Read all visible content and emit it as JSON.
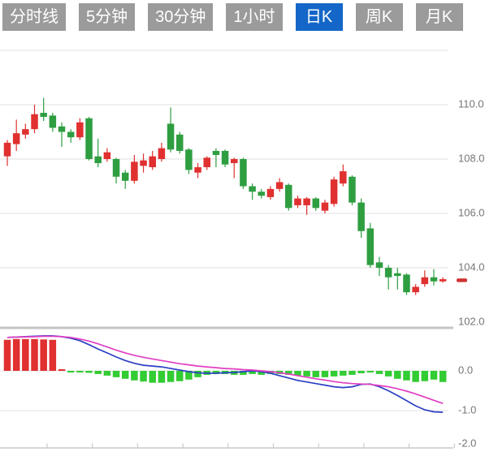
{
  "tabs": {
    "items": [
      {
        "name": "tab-timeline",
        "label": "分时线",
        "selected": false
      },
      {
        "name": "tab-5min",
        "label": "5分钟",
        "selected": false
      },
      {
        "name": "tab-30min",
        "label": "30分钟",
        "selected": false
      },
      {
        "name": "tab-1hour",
        "label": "1小时",
        "selected": false
      },
      {
        "name": "tab-daily-k",
        "label": "日K",
        "selected": true
      },
      {
        "name": "tab-weekly-k",
        "label": "周K",
        "selected": false
      },
      {
        "name": "tab-monthly-k",
        "label": "月K",
        "selected": false
      }
    ],
    "selected_bg": "#1467C8",
    "unselected_bg": "#9B9B9B",
    "text_color": "#FFFFFF"
  },
  "colors": {
    "candle_up": "#E03030",
    "candle_down": "#2E9E41",
    "macd_positive": "#E03030",
    "macd_negative": "#33CC33",
    "dif_line": "#2B3FC4",
    "dea_line": "#E13EC3",
    "gridline": "#E6E6E6",
    "separator": "#C4C4C4",
    "axis_line": "#C9C9C9",
    "axis_text": "#757575",
    "last_price_marker": "#CF3333"
  },
  "chart_data": {
    "type": "candlestick",
    "title": "",
    "price_panel": {
      "ylim": [
        102.0,
        112.0
      ],
      "grid": true,
      "gridline_values": [
        112.0,
        110.0,
        108.0,
        106.0,
        104.0
      ],
      "axis_labels": [
        {
          "text": "110.0",
          "value": 110.0
        },
        {
          "text": "108.0",
          "value": 108.0
        },
        {
          "text": "106.0",
          "value": 106.0
        },
        {
          "text": "104.0",
          "value": 104.0
        },
        {
          "text": "102.0",
          "value": 102.0
        }
      ],
      "last_price": 103.55,
      "candles_ohlc_order": [
        "open",
        "high",
        "low",
        "close"
      ],
      "candles": [
        [
          108.1,
          108.7,
          107.75,
          108.6
        ],
        [
          108.55,
          109.45,
          108.3,
          108.95
        ],
        [
          108.9,
          109.3,
          108.75,
          109.1
        ],
        [
          109.1,
          110.0,
          108.95,
          109.65
        ],
        [
          109.7,
          110.25,
          109.4,
          109.55
        ],
        [
          109.6,
          109.7,
          109.0,
          109.15
        ],
        [
          109.2,
          109.35,
          108.45,
          109.0
        ],
        [
          109.0,
          109.1,
          108.6,
          108.8
        ],
        [
          108.8,
          109.5,
          108.7,
          109.35
        ],
        [
          109.5,
          109.55,
          107.95,
          108.0
        ],
        [
          108.1,
          108.75,
          107.7,
          107.85
        ],
        [
          108.0,
          108.4,
          107.9,
          108.25
        ],
        [
          108.0,
          108.05,
          107.1,
          107.35
        ],
        [
          107.5,
          107.6,
          106.9,
          107.2
        ],
        [
          107.2,
          108.15,
          107.1,
          107.9
        ],
        [
          107.75,
          108.2,
          107.5,
          107.95
        ],
        [
          107.7,
          108.3,
          107.6,
          108.1
        ],
        [
          108.0,
          108.6,
          107.9,
          108.4
        ],
        [
          109.3,
          109.9,
          108.25,
          108.35
        ],
        [
          108.9,
          109.0,
          108.2,
          108.3
        ],
        [
          108.35,
          108.4,
          107.45,
          107.6
        ],
        [
          107.5,
          107.85,
          107.3,
          107.7
        ],
        [
          107.7,
          108.1,
          107.6,
          108.05
        ],
        [
          108.3,
          108.4,
          107.7,
          108.15
        ],
        [
          108.3,
          108.35,
          107.7,
          107.8
        ],
        [
          107.85,
          108.05,
          107.3,
          108.0
        ],
        [
          108.0,
          108.05,
          106.9,
          107.0
        ],
        [
          107.0,
          107.1,
          106.5,
          106.8
        ],
        [
          106.8,
          106.9,
          106.55,
          106.65
        ],
        [
          106.6,
          107.0,
          106.5,
          106.9
        ],
        [
          106.9,
          107.3,
          106.8,
          107.15
        ],
        [
          107.05,
          107.1,
          106.1,
          106.2
        ],
        [
          106.3,
          106.65,
          106.2,
          106.55
        ],
        [
          106.3,
          106.6,
          105.95,
          106.55
        ],
        [
          106.55,
          106.6,
          106.1,
          106.2
        ],
        [
          106.1,
          106.5,
          106.0,
          106.4
        ],
        [
          106.35,
          107.35,
          106.25,
          107.25
        ],
        [
          107.1,
          107.8,
          107.0,
          107.55
        ],
        [
          107.35,
          107.4,
          106.3,
          106.4
        ],
        [
          106.4,
          106.55,
          105.1,
          105.35
        ],
        [
          105.45,
          105.65,
          104.0,
          104.1
        ],
        [
          104.2,
          104.4,
          103.7,
          104.0
        ],
        [
          104.0,
          104.1,
          103.2,
          103.65
        ],
        [
          103.8,
          104.0,
          103.2,
          103.7
        ],
        [
          103.75,
          103.8,
          103.0,
          103.1
        ],
        [
          103.1,
          103.4,
          103.0,
          103.3
        ],
        [
          103.4,
          103.9,
          103.3,
          103.65
        ],
        [
          103.65,
          103.95,
          103.35,
          103.5
        ],
        [
          103.5,
          103.65,
          103.45,
          103.58
        ]
      ]
    },
    "indicator_panel": {
      "type": "macd",
      "ylim": [
        -2.0,
        1.0
      ],
      "grid": true,
      "gridline_values": [
        0.0,
        -1.0
      ],
      "axis_labels": [
        {
          "text": "0.0",
          "value": 0.0
        },
        {
          "text": "-1.0",
          "value": -1.0
        },
        {
          "text": "-2.0",
          "value": -2.0
        }
      ],
      "histogram": [
        0.78,
        0.8,
        0.8,
        0.8,
        0.79,
        0.78,
        0.02,
        -0.02,
        -0.03,
        -0.05,
        -0.08,
        -0.12,
        -0.16,
        -0.2,
        -0.24,
        -0.27,
        -0.3,
        -0.3,
        -0.28,
        -0.26,
        -0.22,
        -0.16,
        -0.1,
        -0.08,
        -0.08,
        -0.1,
        -0.1,
        -0.08,
        -0.1,
        -0.08,
        -0.08,
        -0.1,
        -0.12,
        -0.14,
        -0.16,
        -0.16,
        -0.14,
        -0.12,
        -0.1,
        -0.06,
        -0.03,
        -0.08,
        -0.14,
        -0.2,
        -0.24,
        -0.28,
        -0.26,
        -0.22,
        -0.28
      ],
      "dif": [
        0.84,
        0.85,
        0.86,
        0.87,
        0.88,
        0.88,
        0.86,
        0.82,
        0.76,
        0.66,
        0.55,
        0.45,
        0.35,
        0.26,
        0.19,
        0.14,
        0.12,
        0.1,
        0.06,
        0.02,
        -0.02,
        -0.05,
        -0.06,
        -0.06,
        -0.05,
        -0.04,
        -0.02,
        0.0,
        -0.02,
        -0.06,
        -0.12,
        -0.18,
        -0.24,
        -0.28,
        -0.32,
        -0.36,
        -0.4,
        -0.42,
        -0.4,
        -0.34,
        -0.33,
        -0.4,
        -0.5,
        -0.62,
        -0.75,
        -0.88,
        -0.98,
        -1.03,
        -1.04
      ],
      "dea": [
        0.84,
        0.85,
        0.855,
        0.86,
        0.87,
        0.87,
        0.86,
        0.84,
        0.8,
        0.75,
        0.68,
        0.6,
        0.52,
        0.45,
        0.39,
        0.34,
        0.3,
        0.26,
        0.22,
        0.18,
        0.15,
        0.12,
        0.1,
        0.08,
        0.06,
        0.05,
        0.03,
        0.02,
        0.0,
        -0.02,
        -0.05,
        -0.08,
        -0.12,
        -0.16,
        -0.2,
        -0.23,
        -0.27,
        -0.3,
        -0.32,
        -0.33,
        -0.34,
        -0.37,
        -0.4,
        -0.45,
        -0.51,
        -0.58,
        -0.66,
        -0.74,
        -0.82
      ],
      "x_axis_tick_count": 10
    }
  }
}
